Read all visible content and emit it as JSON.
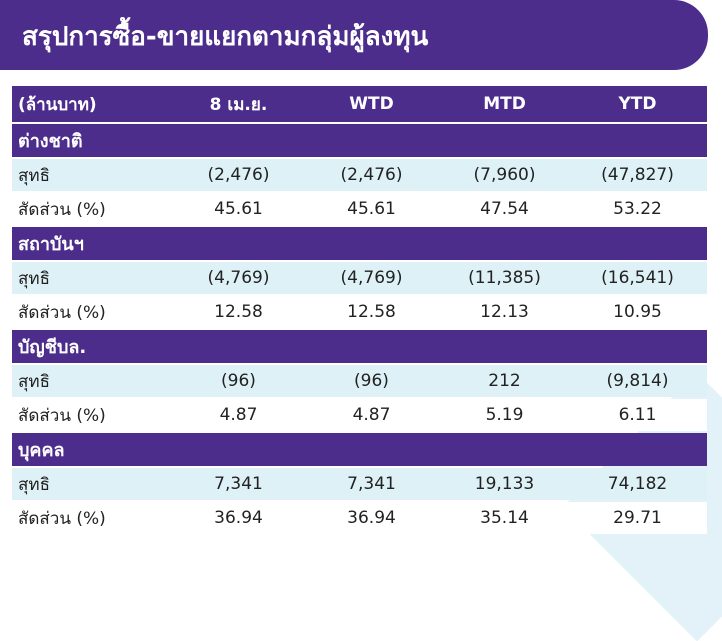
{
  "title": "สรุปการซื้อ-ขายแยกตามกลุ่มผู้ลงทุน",
  "colors": {
    "header_bg": "#4d2d8c",
    "net_row_bg": "#ddf1f7",
    "share_row_bg": "#ffffff"
  },
  "header": {
    "unit": "(ล้านบาท)",
    "cols": [
      "8 เม.ย.",
      "WTD",
      "MTD",
      "YTD"
    ]
  },
  "groups": [
    {
      "name": "ต่างชาติ",
      "net": {
        "label": "สุทธิ",
        "values": [
          "(2,476)",
          "(2,476)",
          "(7,960)",
          "(47,827)"
        ]
      },
      "share": {
        "label": "สัดส่วน (%)",
        "values": [
          "45.61",
          "45.61",
          "47.54",
          "53.22"
        ]
      }
    },
    {
      "name": "สถาบันฯ",
      "net": {
        "label": "สุทธิ",
        "values": [
          "(4,769)",
          "(4,769)",
          "(11,385)",
          "(16,541)"
        ]
      },
      "share": {
        "label": "สัดส่วน (%)",
        "values": [
          "12.58",
          "12.58",
          "12.13",
          "10.95"
        ]
      }
    },
    {
      "name": "บัญชีบล.",
      "net": {
        "label": "สุทธิ",
        "values": [
          "(96)",
          "(96)",
          "212",
          "(9,814)"
        ]
      },
      "share": {
        "label": "สัดส่วน (%)",
        "values": [
          "4.87",
          "4.87",
          "5.19",
          "6.11"
        ]
      }
    },
    {
      "name": "บุคคล",
      "net": {
        "label": "สุทธิ",
        "values": [
          "7,341",
          "7,341",
          "19,133",
          "74,182"
        ]
      },
      "share": {
        "label": "สัดส่วน (%)",
        "values": [
          "36.94",
          "36.94",
          "35.14",
          "29.71"
        ]
      }
    }
  ]
}
